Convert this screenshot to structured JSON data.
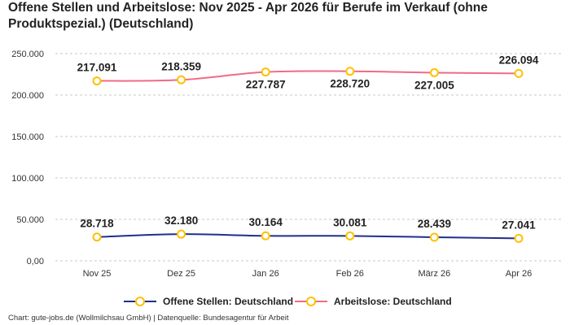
{
  "title_line1": "Offene Stellen und Arbeitslose: Nov 2025 - Apr 2026 für Berufe im Verkauf (ohne",
  "title_line2": "Produktspezial.) (Deutschland)",
  "footer": "Chart: gute-jobs.de (Wollmilchsau GmbH) | Datenquelle: Bundesagentur für Arbeit",
  "colors": {
    "series1": "#1f2f8c",
    "series2": "#f06b84",
    "marker": "#ffc000",
    "grid": "#c8c8c8"
  },
  "chart_data": {
    "type": "line",
    "title": "Offene Stellen und Arbeitslose: Nov 2025 - Apr 2026 für Berufe im Verkauf (ohne Produktspezial.) (Deutschland)",
    "categories": [
      "Nov 25",
      "Dez 25",
      "Jan 26",
      "Feb 26",
      "März 26",
      "Apr 26"
    ],
    "ylim": [
      0,
      250000
    ],
    "y_ticks": [
      0,
      50000,
      100000,
      150000,
      200000,
      250000
    ],
    "y_tick_labels": [
      "0,00",
      "50.000",
      "100.000",
      "150.000",
      "200.000",
      "250.000"
    ],
    "grid": true,
    "legend_position": "bottom",
    "series": [
      {
        "name": "Offene Stellen: Deutschland",
        "values": [
          28718,
          32180,
          30164,
          30081,
          28439,
          27041
        ],
        "labels": [
          "28.718",
          "32.180",
          "30.164",
          "30.081",
          "28.439",
          "27.041"
        ]
      },
      {
        "name": "Arbeitslose: Deutschland",
        "values": [
          217091,
          218359,
          227787,
          228720,
          227005,
          226094
        ],
        "labels": [
          "217.091",
          "218.359",
          "227.787",
          "228.720",
          "227.005",
          "226.094"
        ]
      }
    ]
  }
}
